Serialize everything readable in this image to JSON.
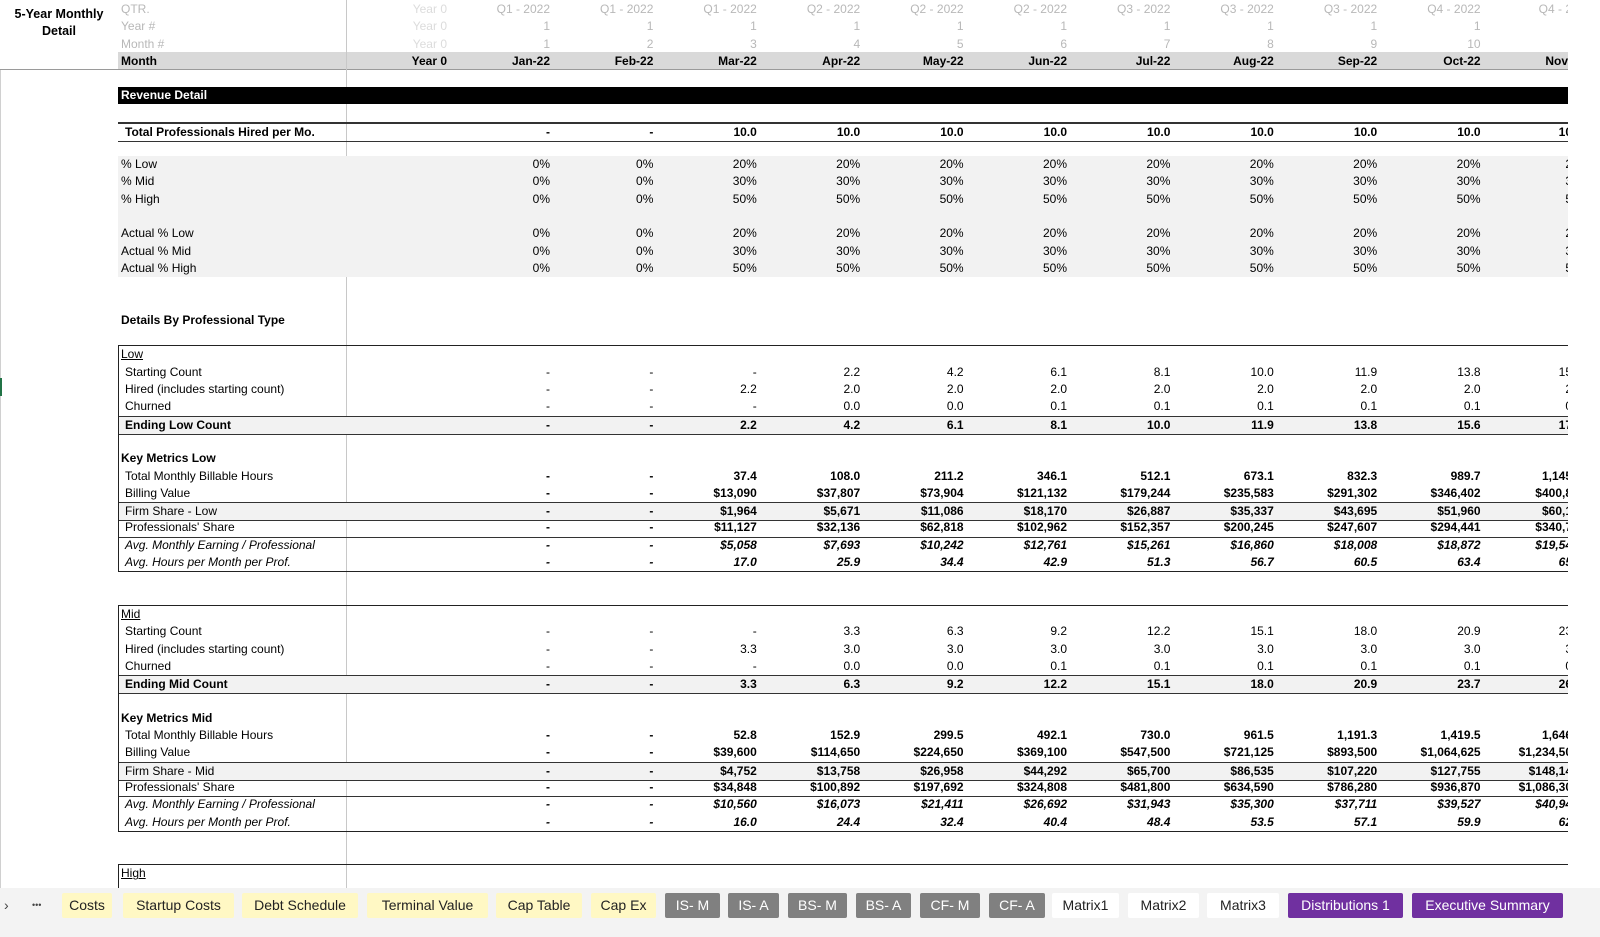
{
  "sheet_title": "5-Year Monthly Detail",
  "header": {
    "row_labels": [
      "QTR.",
      "Year #",
      "Month #",
      "Month"
    ],
    "year0": [
      "Year 0",
      "Year 0",
      "Year 0",
      "Year 0"
    ],
    "columns": [
      {
        "qtr": "Q1 - 2022",
        "year": "1",
        "month_no": "1",
        "month": "Jan-22"
      },
      {
        "qtr": "Q1 - 2022",
        "year": "1",
        "month_no": "2",
        "month": "Feb-22"
      },
      {
        "qtr": "Q1 - 2022",
        "year": "1",
        "month_no": "3",
        "month": "Mar-22"
      },
      {
        "qtr": "Q2 - 2022",
        "year": "1",
        "month_no": "4",
        "month": "Apr-22"
      },
      {
        "qtr": "Q2 - 2022",
        "year": "1",
        "month_no": "5",
        "month": "May-22"
      },
      {
        "qtr": "Q2 - 2022",
        "year": "1",
        "month_no": "6",
        "month": "Jun-22"
      },
      {
        "qtr": "Q3 - 2022",
        "year": "1",
        "month_no": "7",
        "month": "Jul-22"
      },
      {
        "qtr": "Q3 - 2022",
        "year": "1",
        "month_no": "8",
        "month": "Aug-22"
      },
      {
        "qtr": "Q3 - 2022",
        "year": "1",
        "month_no": "9",
        "month": "Sep-22"
      },
      {
        "qtr": "Q4 - 2022",
        "year": "1",
        "month_no": "10",
        "month": "Oct-22"
      },
      {
        "qtr": "Q4 - 2",
        "year": "",
        "month_no": "",
        "month": "Nov-"
      }
    ]
  },
  "rows": [
    {
      "type": "spacer"
    },
    {
      "type": "band",
      "label": "Revenue Detail"
    },
    {
      "type": "spacer"
    },
    {
      "type": "total",
      "label": "Total Professionals Hired per Mo.",
      "values": [
        "-",
        "-",
        "10.0",
        "10.0",
        "10.0",
        "10.0",
        "10.0",
        "10.0",
        "10.0",
        "10.0",
        "10"
      ]
    },
    {
      "type": "spacer"
    },
    {
      "type": "shade",
      "label": "% Low",
      "values": [
        "0%",
        "0%",
        "20%",
        "20%",
        "20%",
        "20%",
        "20%",
        "20%",
        "20%",
        "20%",
        "2"
      ]
    },
    {
      "type": "shade",
      "label": "% Mid",
      "values": [
        "0%",
        "0%",
        "30%",
        "30%",
        "30%",
        "30%",
        "30%",
        "30%",
        "30%",
        "30%",
        "3"
      ]
    },
    {
      "type": "shade",
      "label": "% High",
      "values": [
        "0%",
        "0%",
        "50%",
        "50%",
        "50%",
        "50%",
        "50%",
        "50%",
        "50%",
        "50%",
        "5"
      ]
    },
    {
      "type": "shade"
    },
    {
      "type": "shade",
      "label": "Actual % Low",
      "values": [
        "0%",
        "0%",
        "20%",
        "20%",
        "20%",
        "20%",
        "20%",
        "20%",
        "20%",
        "20%",
        "2"
      ]
    },
    {
      "type": "shade",
      "label": "Actual % Mid",
      "values": [
        "0%",
        "0%",
        "30%",
        "30%",
        "30%",
        "30%",
        "30%",
        "30%",
        "30%",
        "30%",
        "3"
      ]
    },
    {
      "type": "shade",
      "label": "Actual % High",
      "values": [
        "0%",
        "0%",
        "50%",
        "50%",
        "50%",
        "50%",
        "50%",
        "50%",
        "50%",
        "50%",
        "5"
      ]
    },
    {
      "type": "spacer"
    },
    {
      "type": "spacer"
    },
    {
      "type": "heading",
      "label": "Details By Professional Type"
    },
    {
      "type": "spacer"
    },
    {
      "type": "group",
      "label": "Low"
    },
    {
      "type": "item",
      "label": "Starting Count",
      "values": [
        "-",
        "-",
        "-",
        "2.2",
        "4.2",
        "6.1",
        "8.1",
        "10.0",
        "11.9",
        "13.8",
        "15"
      ]
    },
    {
      "type": "item",
      "label": "Hired (includes starting count)",
      "values": [
        "-",
        "-",
        "2.2",
        "2.0",
        "2.0",
        "2.0",
        "2.0",
        "2.0",
        "2.0",
        "2.0",
        "2"
      ]
    },
    {
      "type": "item",
      "label": "Churned",
      "values": [
        "-",
        "-",
        "-",
        "0.0",
        "0.0",
        "0.1",
        "0.1",
        "0.1",
        "0.1",
        "0.1",
        "0"
      ]
    },
    {
      "type": "ending",
      "label": "Ending Low Count",
      "values": [
        "-",
        "-",
        "2.2",
        "4.2",
        "6.1",
        "8.1",
        "10.0",
        "11.9",
        "13.8",
        "15.6",
        "17"
      ]
    },
    {
      "type": "spacer"
    },
    {
      "type": "heading",
      "label": "Key Metrics Low"
    },
    {
      "type": "metric",
      "label": "Total Monthly Billable Hours",
      "values": [
        "-",
        "-",
        "37.4",
        "108.0",
        "211.2",
        "346.1",
        "512.1",
        "673.1",
        "832.3",
        "989.7",
        "1,145"
      ]
    },
    {
      "type": "metric_bb",
      "label": "Billing Value",
      "values": [
        "-",
        "-",
        "$13,090",
        "$37,807",
        "$73,904",
        "$121,132",
        "$179,244",
        "$235,583",
        "$291,302",
        "$346,402",
        "$400,8"
      ]
    },
    {
      "type": "firm",
      "label": "Firm Share - Low",
      "values": [
        "-",
        "-",
        "$1,964",
        "$5,671",
        "$11,086",
        "$18,170",
        "$26,887",
        "$35,337",
        "$43,695",
        "$51,960",
        "$60,1"
      ]
    },
    {
      "type": "metric_bb",
      "label": "Professionals' Share",
      "values": [
        "-",
        "-",
        "$11,127",
        "$32,136",
        "$62,818",
        "$102,962",
        "$152,357",
        "$200,245",
        "$247,607",
        "$294,441",
        "$340,7"
      ]
    },
    {
      "type": "avg",
      "label": "Avg. Monthly Earning / Professional",
      "values": [
        "-",
        "-",
        "$5,058",
        "$7,693",
        "$10,242",
        "$12,761",
        "$15,261",
        "$16,860",
        "$18,008",
        "$18,872",
        "$19,54"
      ]
    },
    {
      "type": "avg",
      "label": "Avg. Hours per Month per Prof.",
      "values": [
        "-",
        "-",
        "17.0",
        "25.9",
        "34.4",
        "42.9",
        "51.3",
        "56.7",
        "60.5",
        "63.4",
        "65"
      ]
    },
    {
      "type": "spacer"
    },
    {
      "type": "spacer"
    },
    {
      "type": "group",
      "label": "Mid"
    },
    {
      "type": "item",
      "label": "Starting Count",
      "values": [
        "-",
        "-",
        "-",
        "3.3",
        "6.3",
        "9.2",
        "12.2",
        "15.1",
        "18.0",
        "20.9",
        "23"
      ]
    },
    {
      "type": "item",
      "label": "Hired (includes starting count)",
      "values": [
        "-",
        "-",
        "3.3",
        "3.0",
        "3.0",
        "3.0",
        "3.0",
        "3.0",
        "3.0",
        "3.0",
        "3"
      ]
    },
    {
      "type": "item",
      "label": "Churned",
      "values": [
        "-",
        "-",
        "-",
        "0.0",
        "0.0",
        "0.1",
        "0.1",
        "0.1",
        "0.1",
        "0.1",
        "0"
      ]
    },
    {
      "type": "ending",
      "label": "Ending Mid Count",
      "values": [
        "-",
        "-",
        "3.3",
        "6.3",
        "9.2",
        "12.2",
        "15.1",
        "18.0",
        "20.9",
        "23.7",
        "26"
      ]
    },
    {
      "type": "spacer"
    },
    {
      "type": "heading",
      "label": "Key Metrics Mid"
    },
    {
      "type": "metric",
      "label": "Total Monthly Billable Hours",
      "values": [
        "-",
        "-",
        "52.8",
        "152.9",
        "299.5",
        "492.1",
        "730.0",
        "961.5",
        "1,191.3",
        "1,419.5",
        "1,646"
      ]
    },
    {
      "type": "metric_bb",
      "label": "Billing Value",
      "values": [
        "-",
        "-",
        "$39,600",
        "$114,650",
        "$224,650",
        "$369,100",
        "$547,500",
        "$721,125",
        "$893,500",
        "$1,064,625",
        "$1,234,50"
      ]
    },
    {
      "type": "firm",
      "label": "Firm Share - Mid",
      "values": [
        "-",
        "-",
        "$4,752",
        "$13,758",
        "$26,958",
        "$44,292",
        "$65,700",
        "$86,535",
        "$107,220",
        "$127,755",
        "$148,14"
      ]
    },
    {
      "type": "metric_bb",
      "label": "Professionals' Share",
      "values": [
        "-",
        "-",
        "$34,848",
        "$100,892",
        "$197,692",
        "$324,808",
        "$481,800",
        "$634,590",
        "$786,280",
        "$936,870",
        "$1,086,30"
      ]
    },
    {
      "type": "avg",
      "label": "Avg. Monthly Earning / Professional",
      "values": [
        "-",
        "-",
        "$10,560",
        "$16,073",
        "$21,411",
        "$26,692",
        "$31,943",
        "$35,300",
        "$37,711",
        "$39,527",
        "$40,94"
      ]
    },
    {
      "type": "avg",
      "label": "Avg. Hours per Month per Prof.",
      "values": [
        "-",
        "-",
        "16.0",
        "24.4",
        "32.4",
        "40.4",
        "48.4",
        "53.5",
        "57.1",
        "59.9",
        "62"
      ]
    },
    {
      "type": "spacer"
    },
    {
      "type": "spacer"
    },
    {
      "type": "group",
      "label": "High"
    }
  ],
  "tabs_nav": {
    "prev": "›",
    "more": "•••"
  },
  "tabs": [
    {
      "label": "Costs",
      "color": "yellow"
    },
    {
      "label": "Startup Costs",
      "color": "yellow"
    },
    {
      "label": "Debt Schedule",
      "color": "yellow"
    },
    {
      "label": "Terminal Value",
      "color": "yellow"
    },
    {
      "label": "Cap Table",
      "color": "yellow"
    },
    {
      "label": "Cap Ex",
      "color": "yellow"
    },
    {
      "label": "IS- M",
      "color": "gray"
    },
    {
      "label": "IS- A",
      "color": "gray"
    },
    {
      "label": "BS- M",
      "color": "gray"
    },
    {
      "label": "BS- A",
      "color": "gray"
    },
    {
      "label": "CF- M",
      "color": "gray"
    },
    {
      "label": "CF- A",
      "color": "gray"
    },
    {
      "label": "Matrix1",
      "color": "white"
    },
    {
      "label": "Matrix2",
      "color": "white"
    },
    {
      "label": "Matrix3",
      "color": "white"
    },
    {
      "label": "Distributions 1",
      "color": "purple"
    },
    {
      "label": "Executive Summary",
      "color": "purple"
    }
  ],
  "colors": {
    "yellow_tab": "#fff8c4",
    "gray_tab": "#808080",
    "purple_tab": "#7030a0",
    "band": "#000000",
    "shade": "#f2f2f2",
    "header_band": "#d9d9d9"
  }
}
